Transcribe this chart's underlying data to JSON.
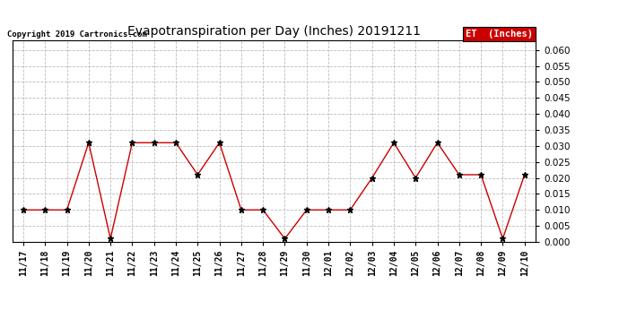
{
  "title": "Evapotranspiration per Day (Inches) 20191211",
  "copyright": "Copyright 2019 Cartronics.com",
  "legend_label": "ET  (Inches)",
  "legend_bg": "#cc0000",
  "legend_fg": "#ffffff",
  "line_color": "#cc0000",
  "marker_color": "#000000",
  "background_color": "#ffffff",
  "grid_color": "#bbbbbb",
  "dates": [
    "11/17",
    "11/18",
    "11/19",
    "11/20",
    "11/21",
    "11/22",
    "11/23",
    "11/24",
    "11/25",
    "11/26",
    "11/27",
    "11/28",
    "11/29",
    "11/30",
    "12/01",
    "12/02",
    "12/03",
    "12/04",
    "12/05",
    "12/06",
    "12/07",
    "12/08",
    "12/09",
    "12/10"
  ],
  "values": [
    0.01,
    0.01,
    0.01,
    0.031,
    0.001,
    0.031,
    0.031,
    0.031,
    0.021,
    0.031,
    0.01,
    0.01,
    0.001,
    0.01,
    0.01,
    0.01,
    0.02,
    0.031,
    0.02,
    0.031,
    0.021,
    0.021,
    0.001,
    0.021
  ],
  "ylim": [
    0.0,
    0.063
  ],
  "yticks": [
    0.0,
    0.005,
    0.01,
    0.015,
    0.02,
    0.025,
    0.03,
    0.035,
    0.04,
    0.045,
    0.05,
    0.055,
    0.06
  ]
}
